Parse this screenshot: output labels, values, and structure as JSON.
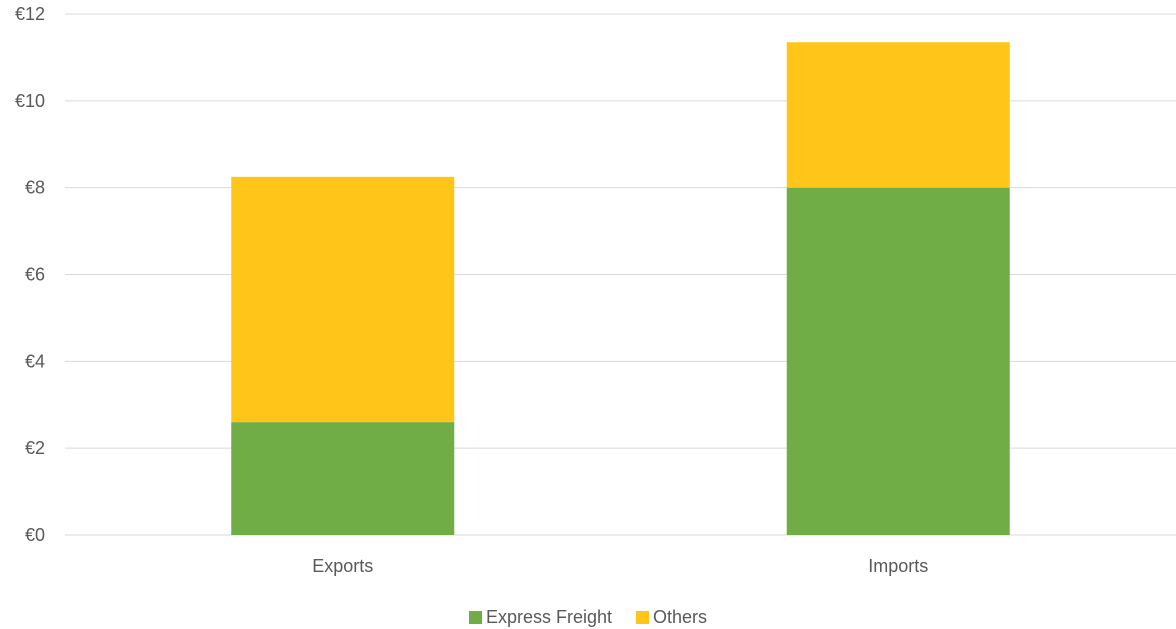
{
  "chart_data": {
    "type": "bar",
    "stacked": true,
    "title": "",
    "xlabel": "",
    "ylabel": "",
    "categories": [
      "Exports",
      "Imports"
    ],
    "series": [
      {
        "name": "Express Freight",
        "values": [
          2.6,
          8.0
        ],
        "color": "#70ad47"
      },
      {
        "name": "Others",
        "values": [
          5.65,
          3.35
        ],
        "color": "#ffc619"
      }
    ],
    "ylim": [
      0,
      12
    ],
    "yticks": [
      0,
      2,
      4,
      6,
      8,
      10,
      12
    ],
    "ytick_labels": [
      "€0",
      "€2",
      "€4",
      "€6",
      "€8",
      "€10",
      "€12"
    ],
    "grid": true,
    "legend_position": "bottom"
  }
}
